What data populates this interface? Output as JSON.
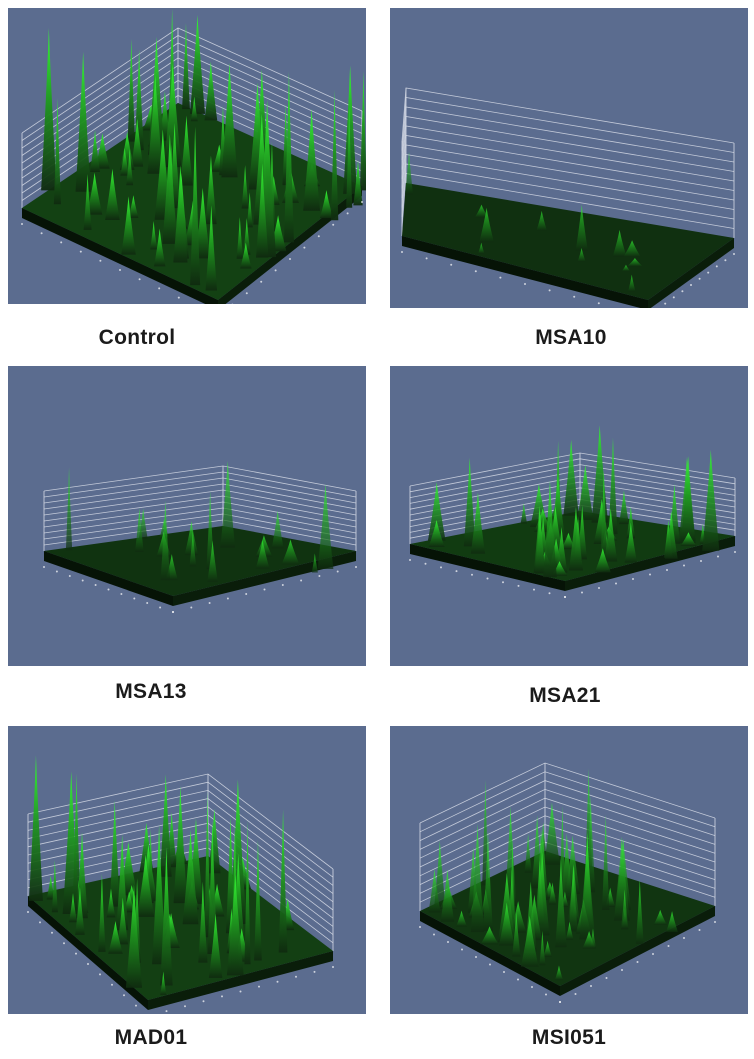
{
  "figure": {
    "background_color": "#5b6c8f",
    "surface_color": "#0f2a0f",
    "peak_color": "#36ff36",
    "panels": [
      {
        "id": "control",
        "label": "Control",
        "intensity": "high"
      },
      {
        "id": "msa10",
        "label": "MSA10",
        "intensity": "very-low"
      },
      {
        "id": "msa13",
        "label": "MSA13",
        "intensity": "low"
      },
      {
        "id": "msa21",
        "label": "MSA21",
        "intensity": "medium"
      },
      {
        "id": "mad01",
        "label": "MAD01",
        "intensity": "high"
      },
      {
        "id": "msi051",
        "label": "MSI051",
        "intensity": "medium-low"
      }
    ]
  }
}
